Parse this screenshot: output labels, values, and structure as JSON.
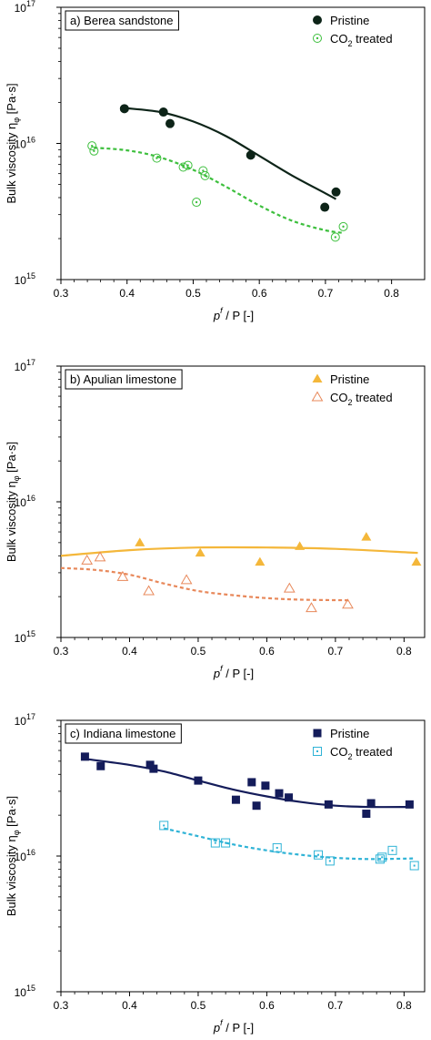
{
  "chart_data": [
    {
      "type": "scatter",
      "panel_label": "a) Berea sandstone",
      "xlabel": "p^f / P [-]",
      "xlabel_parts": {
        "main": "p",
        "sup": "f",
        "rest": " / P [-]"
      },
      "ylabel": "Bulk viscosity η_φ [Pa·s]",
      "ylabel_parts": {
        "main": "Bulk viscosity η",
        "sub": "φ",
        "rest": " [Pa·s]"
      },
      "xlim": [
        0.3,
        0.85
      ],
      "ylim": [
        1000000000000000.0,
        1e+17
      ],
      "yscale": "log",
      "x_ticks": [
        "0.3",
        "0.4",
        "0.5",
        "0.6",
        "0.7",
        "0.8"
      ],
      "y_ticks": [
        {
          "base": "10",
          "exp": "15"
        },
        {
          "base": "10",
          "exp": "16"
        },
        {
          "base": "10",
          "exp": "17"
        }
      ],
      "legend_position": "top-right",
      "series": [
        {
          "name": "Pristine",
          "name_parts": {
            "main": "Pristine",
            "sub": "",
            "rest": ""
          },
          "marker": "filled-circle",
          "color": "#0d2418",
          "points": [
            [
              0.396,
              1.8e+16
            ],
            [
              0.455,
              1.7e+16
            ],
            [
              0.465,
              1.4e+16
            ],
            [
              0.587,
              8200000000000000.0
            ],
            [
              0.699,
              3400000000000000.0
            ],
            [
              0.716,
              4400000000000000.0
            ]
          ],
          "fit": [
            [
              0.396,
              1.82e+16
            ],
            [
              0.45,
              1.7e+16
            ],
            [
              0.5,
              1.45e+16
            ],
            [
              0.55,
              1.13e+16
            ],
            [
              0.6,
              8100000000000000.0
            ],
            [
              0.65,
              5800000000000000.0
            ],
            [
              0.7,
              4300000000000000.0
            ],
            [
              0.716,
              3900000000000000.0
            ]
          ],
          "fit_style": "solid"
        },
        {
          "name": "CO2 treated",
          "name_parts": {
            "main": "CO",
            "sub": "2",
            "rest": " treated"
          },
          "marker": "open-circle",
          "color": "#3dbf3d",
          "points": [
            [
              0.347,
              9600000000000000.0
            ],
            [
              0.35,
              8800000000000000.0
            ],
            [
              0.445,
              7800000000000000.0
            ],
            [
              0.485,
              6700000000000000.0
            ],
            [
              0.492,
              6900000000000000.0
            ],
            [
              0.505,
              3700000000000000.0
            ],
            [
              0.515,
              6300000000000000.0
            ],
            [
              0.518,
              5800000000000000.0
            ],
            [
              0.715,
              2050000000000000.0
            ],
            [
              0.727,
              2450000000000000.0
            ]
          ],
          "fit": [
            [
              0.35,
              9300000000000000.0
            ],
            [
              0.4,
              8900000000000000.0
            ],
            [
              0.45,
              7900000000000000.0
            ],
            [
              0.5,
              6400000000000000.0
            ],
            [
              0.55,
              4800000000000000.0
            ],
            [
              0.6,
              3500000000000000.0
            ],
            [
              0.65,
              2700000000000000.0
            ],
            [
              0.7,
              2300000000000000.0
            ],
            [
              0.727,
              2200000000000000.0
            ]
          ],
          "fit_style": "dashed"
        }
      ]
    },
    {
      "type": "scatter",
      "panel_label": "b) Apulian limestone",
      "xlabel": "p^f / P [-]",
      "xlabel_parts": {
        "main": "p",
        "sup": "f",
        "rest": " / P [-]"
      },
      "ylabel": "Bulk viscosity η_φ [Pa·s]",
      "ylabel_parts": {
        "main": "Bulk viscosity η",
        "sub": "φ",
        "rest": " [Pa·s]"
      },
      "xlim": [
        0.3,
        0.83
      ],
      "ylim": [
        1000000000000000.0,
        1e+17
      ],
      "yscale": "log",
      "x_ticks": [
        "0.3",
        "0.4",
        "0.5",
        "0.6",
        "0.7",
        "0.8"
      ],
      "y_ticks": [
        {
          "base": "10",
          "exp": "15"
        },
        {
          "base": "10",
          "exp": "16"
        },
        {
          "base": "10",
          "exp": "17"
        }
      ],
      "legend_position": "top-right",
      "series": [
        {
          "name": "Pristine",
          "name_parts": {
            "main": "Pristine",
            "sub": "",
            "rest": ""
          },
          "marker": "filled-triangle",
          "color": "#f4b73a",
          "points": [
            [
              0.415,
              5000000000000000.0
            ],
            [
              0.503,
              4200000000000000.0
            ],
            [
              0.59,
              3600000000000000.0
            ],
            [
              0.648,
              4700000000000000.0
            ],
            [
              0.745,
              5500000000000000.0
            ],
            [
              0.818,
              3600000000000000.0
            ]
          ],
          "fit": [
            [
              0.3,
              4000000000000000.0
            ],
            [
              0.4,
              4400000000000000.0
            ],
            [
              0.5,
              4600000000000000.0
            ],
            [
              0.6,
              4600000000000000.0
            ],
            [
              0.7,
              4500000000000000.0
            ],
            [
              0.82,
              4200000000000000.0
            ]
          ],
          "fit_style": "solid"
        },
        {
          "name": "CO2 treated",
          "name_parts": {
            "main": "CO",
            "sub": "2",
            "rest": " treated"
          },
          "marker": "open-triangle",
          "color": "#e8885a",
          "points": [
            [
              0.338,
              3700000000000000.0
            ],
            [
              0.357,
              3900000000000000.0
            ],
            [
              0.39,
              2800000000000000.0
            ],
            [
              0.428,
              2200000000000000.0
            ],
            [
              0.483,
              2650000000000000.0
            ],
            [
              0.633,
              2300000000000000.0
            ],
            [
              0.665,
              1650000000000000.0
            ],
            [
              0.718,
              1750000000000000.0
            ]
          ],
          "fit": [
            [
              0.3,
              3250000000000000.0
            ],
            [
              0.35,
              3150000000000000.0
            ],
            [
              0.4,
              2900000000000000.0
            ],
            [
              0.45,
              2500000000000000.0
            ],
            [
              0.5,
              2200000000000000.0
            ],
            [
              0.55,
              2050000000000000.0
            ],
            [
              0.6,
              1950000000000000.0
            ],
            [
              0.65,
              1900000000000000.0
            ],
            [
              0.72,
              1880000000000000.0
            ]
          ],
          "fit_style": "dashed"
        }
      ]
    },
    {
      "type": "scatter",
      "panel_label": "c) Indiana limestone",
      "xlabel": "p^f / P [-]",
      "xlabel_parts": {
        "main": "p",
        "sup": "f",
        "rest": " / P [-]"
      },
      "ylabel": "Bulk viscosity η_φ [Pa·s]",
      "ylabel_parts": {
        "main": "Bulk viscosity η",
        "sub": "φ",
        "rest": " [Pa·s]"
      },
      "xlim": [
        0.3,
        0.83
      ],
      "ylim": [
        1000000000000000.0,
        1e+17
      ],
      "yscale": "log",
      "x_ticks": [
        "0.3",
        "0.4",
        "0.5",
        "0.6",
        "0.7",
        "0.8"
      ],
      "y_ticks": [
        {
          "base": "10",
          "exp": "15"
        },
        {
          "base": "10",
          "exp": "16"
        },
        {
          "base": "10",
          "exp": "17"
        }
      ],
      "legend_position": "top-right",
      "series": [
        {
          "name": "Pristine",
          "name_parts": {
            "main": "Pristine",
            "sub": "",
            "rest": ""
          },
          "marker": "filled-square",
          "color": "#141c5a",
          "points": [
            [
              0.335,
              5.4e+16
            ],
            [
              0.358,
              4.6e+16
            ],
            [
              0.43,
              4.7e+16
            ],
            [
              0.435,
              4.4e+16
            ],
            [
              0.5,
              3.6e+16
            ],
            [
              0.555,
              2.6e+16
            ],
            [
              0.578,
              3.5e+16
            ],
            [
              0.585,
              2.35e+16
            ],
            [
              0.598,
              3.3e+16
            ],
            [
              0.618,
              2.9e+16
            ],
            [
              0.632,
              2.7e+16
            ],
            [
              0.69,
              2.4e+16
            ],
            [
              0.745,
              2.05e+16
            ],
            [
              0.752,
              2.45e+16
            ],
            [
              0.808,
              2.4e+16
            ]
          ],
          "fit": [
            [
              0.335,
              5.2e+16
            ],
            [
              0.4,
              4.7e+16
            ],
            [
              0.45,
              4.2e+16
            ],
            [
              0.5,
              3.6e+16
            ],
            [
              0.55,
              3.1e+16
            ],
            [
              0.6,
              2.75e+16
            ],
            [
              0.65,
              2.5e+16
            ],
            [
              0.7,
              2.35e+16
            ],
            [
              0.75,
              2.3e+16
            ],
            [
              0.808,
              2.3e+16
            ]
          ],
          "fit_style": "solid"
        },
        {
          "name": "CO2 treated",
          "name_parts": {
            "main": "CO",
            "sub": "2",
            "rest": " treated"
          },
          "marker": "open-square",
          "color": "#2fb3d6",
          "points": [
            [
              0.45,
              1.68e+16
            ],
            [
              0.525,
              1.25e+16
            ],
            [
              0.54,
              1.25e+16
            ],
            [
              0.615,
              1.15e+16
            ],
            [
              0.675,
              1.02e+16
            ],
            [
              0.692,
              9200000000000000.0
            ],
            [
              0.765,
              9500000000000000.0
            ],
            [
              0.768,
              9800000000000000.0
            ],
            [
              0.783,
              1.1e+16
            ],
            [
              0.815,
              8500000000000000.0
            ]
          ],
          "fit": [
            [
              0.45,
              1.6e+16
            ],
            [
              0.5,
              1.4e+16
            ],
            [
              0.55,
              1.22e+16
            ],
            [
              0.6,
              1.1e+16
            ],
            [
              0.65,
              1.02e+16
            ],
            [
              0.7,
              9700000000000000.0
            ],
            [
              0.75,
              9500000000000000.0
            ],
            [
              0.815,
              9600000000000000.0
            ]
          ],
          "fit_style": "dashed"
        }
      ]
    }
  ]
}
